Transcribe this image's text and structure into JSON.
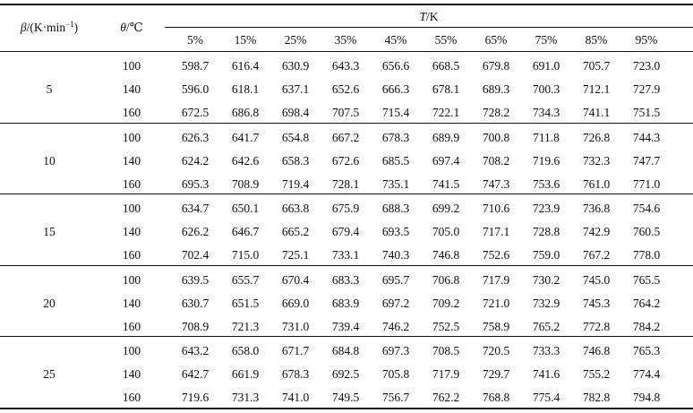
{
  "table": {
    "header": {
      "beta_symbol": "β",
      "beta_unit": "/(K·min",
      "beta_exp": "−1",
      "beta_close": ")",
      "theta_symbol": "θ",
      "theta_unit": "/℃",
      "T_symbol": "T",
      "T_unit": "/K",
      "percent_columns": [
        "5%",
        "15%",
        "25%",
        "35%",
        "45%",
        "55%",
        "65%",
        "75%",
        "85%",
        "95%"
      ]
    },
    "groups": [
      {
        "beta": "5",
        "rows": [
          {
            "theta": "100",
            "values": [
              "598.7",
              "616.4",
              "630.9",
              "643.3",
              "656.6",
              "668.5",
              "679.8",
              "691.0",
              "705.7",
              "723.0"
            ]
          },
          {
            "theta": "140",
            "values": [
              "596.0",
              "618.1",
              "637.1",
              "652.6",
              "666.3",
              "678.1",
              "689.3",
              "700.3",
              "712.1",
              "727.9"
            ]
          },
          {
            "theta": "160",
            "values": [
              "672.5",
              "686.8",
              "698.4",
              "707.5",
              "715.4",
              "722.1",
              "728.2",
              "734.3",
              "741.1",
              "751.5"
            ]
          }
        ]
      },
      {
        "beta": "10",
        "rows": [
          {
            "theta": "100",
            "values": [
              "626.3",
              "641.7",
              "654.8",
              "667.2",
              "678.3",
              "689.9",
              "700.8",
              "711.8",
              "726.8",
              "744.3"
            ]
          },
          {
            "theta": "140",
            "values": [
              "624.2",
              "642.6",
              "658.3",
              "672.6",
              "685.5",
              "697.4",
              "708.2",
              "719.6",
              "732.3",
              "747.7"
            ]
          },
          {
            "theta": "160",
            "values": [
              "695.3",
              "708.9",
              "719.4",
              "728.1",
              "735.1",
              "741.5",
              "747.3",
              "753.6",
              "761.0",
              "771.0"
            ]
          }
        ]
      },
      {
        "beta": "15",
        "rows": [
          {
            "theta": "100",
            "values": [
              "634.7",
              "650.1",
              "663.8",
              "675.9",
              "688.3",
              "699.2",
              "710.6",
              "723.9",
              "736.8",
              "754.6"
            ]
          },
          {
            "theta": "140",
            "values": [
              "626.2",
              "646.7",
              "665.2",
              "679.4",
              "693.5",
              "705.0",
              "717.1",
              "728.8",
              "742.9",
              "760.5"
            ]
          },
          {
            "theta": "160",
            "values": [
              "702.4",
              "715.0",
              "725.1",
              "733.1",
              "740.3",
              "746.8",
              "752.6",
              "759.0",
              "767.2",
              "778.0"
            ]
          }
        ]
      },
      {
        "beta": "20",
        "rows": [
          {
            "theta": "100",
            "values": [
              "639.5",
              "655.7",
              "670.4",
              "683.3",
              "695.7",
              "706.8",
              "717.9",
              "730.2",
              "745.0",
              "765.5"
            ]
          },
          {
            "theta": "140",
            "values": [
              "630.7",
              "651.5",
              "669.0",
              "683.9",
              "697.2",
              "709.2",
              "721.0",
              "732.9",
              "745.3",
              "764.2"
            ]
          },
          {
            "theta": "160",
            "values": [
              "708.9",
              "721.3",
              "731.0",
              "739.4",
              "746.2",
              "752.5",
              "758.9",
              "765.2",
              "772.8",
              "784.2"
            ]
          }
        ]
      },
      {
        "beta": "25",
        "rows": [
          {
            "theta": "100",
            "values": [
              "643.2",
              "658.0",
              "671.7",
              "684.8",
              "697.3",
              "708.5",
              "720.5",
              "733.3",
              "746.8",
              "765.3"
            ]
          },
          {
            "theta": "140",
            "values": [
              "642.7",
              "661.9",
              "678.3",
              "692.5",
              "705.8",
              "717.9",
              "729.7",
              "741.6",
              "755.2",
              "774.4"
            ]
          },
          {
            "theta": "160",
            "values": [
              "719.6",
              "731.3",
              "741.0",
              "749.5",
              "756.7",
              "762.2",
              "768.8",
              "775.4",
              "782.8",
              "794.8"
            ]
          }
        ]
      }
    ]
  }
}
